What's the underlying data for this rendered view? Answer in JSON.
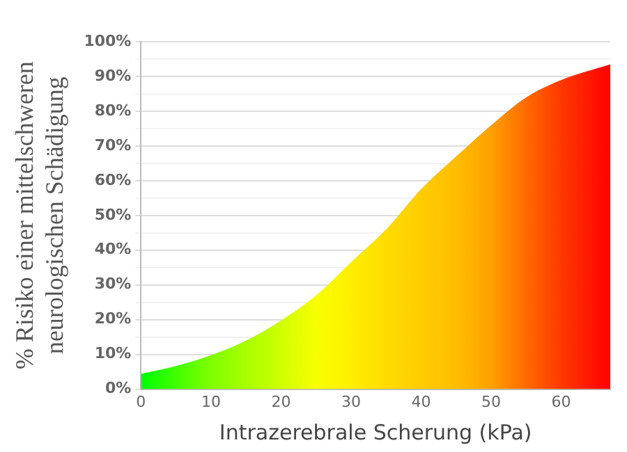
{
  "chart_data": {
    "type": "area",
    "xlabel": "Intrazerebrale Scherung (kPa)",
    "ylabel": "% Risiko einer mittelschweren\nneurologischen Schädigung",
    "x": [
      0,
      5,
      10,
      15,
      20,
      25,
      30,
      35,
      40,
      45,
      50,
      55,
      60,
      67
    ],
    "values": [
      4.4,
      6.7,
      9.8,
      14,
      19.8,
      27,
      36.6,
      46,
      57.6,
      67,
      76,
      84,
      89,
      93.5
    ],
    "colors": [
      "#00ff00",
      "#40ff00",
      "#80ff00",
      "#a8ff00",
      "#d0ff00",
      "#f8ff00",
      "#ffee00",
      "#ffdc00",
      "#ffcc00",
      "#ffbe00",
      "#ffa000",
      "#ff6a00",
      "#ff3800",
      "#ff0000"
    ],
    "xlim": [
      0,
      67
    ],
    "xticks": [
      0,
      10,
      20,
      30,
      40,
      50,
      60
    ],
    "ylim": [
      0,
      100
    ],
    "yticks": [
      {
        "value": 0,
        "label": "0%"
      },
      {
        "value": 5,
        "label": null
      },
      {
        "value": 10,
        "label": "10%"
      },
      {
        "value": 15,
        "label": null
      },
      {
        "value": 20,
        "label": "20%"
      },
      {
        "value": 25,
        "label": null
      },
      {
        "value": 30,
        "label": "30%"
      },
      {
        "value": 35,
        "label": null
      },
      {
        "value": 40,
        "label": "40%"
      },
      {
        "value": 45,
        "label": null
      },
      {
        "value": 50,
        "label": "50%"
      },
      {
        "value": 55,
        "label": null
      },
      {
        "value": 60,
        "label": "60%"
      },
      {
        "value": 65,
        "label": null
      },
      {
        "value": 70,
        "label": "70%"
      },
      {
        "value": 75,
        "label": null
      },
      {
        "value": 80,
        "label": "80%"
      },
      {
        "value": 85,
        "label": null
      },
      {
        "value": 90,
        "label": "90%"
      },
      {
        "value": 95,
        "label": null
      },
      {
        "value": 100,
        "label": "100%"
      }
    ],
    "grid": "y",
    "legend": false
  }
}
